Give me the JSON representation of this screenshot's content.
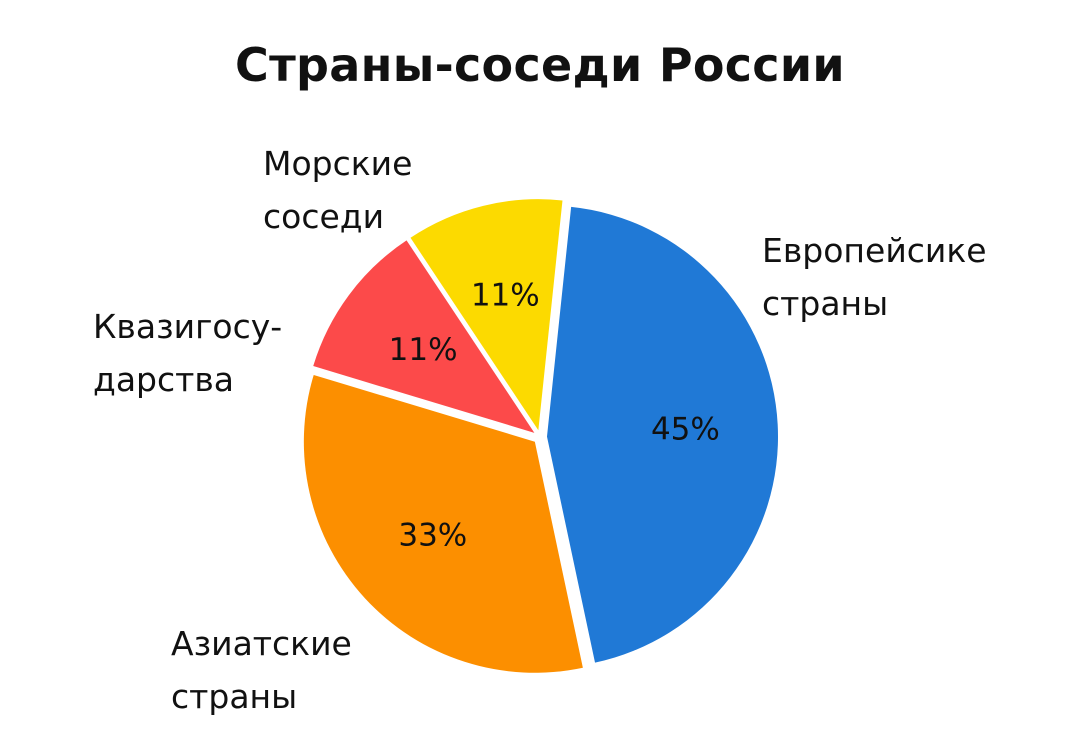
{
  "chart_data": {
    "type": "pie",
    "title": "Страны-соседи России",
    "slices": [
      {
        "name": "Европейсике страны",
        "label_lines": [
          "Европейсике",
          "страны"
        ],
        "value": 45,
        "value_label": "45%",
        "color": "#2079d6"
      },
      {
        "name": "Азиатские страны",
        "label_lines": [
          "Азиатские",
          "страны"
        ],
        "value": 33,
        "value_label": "33%",
        "color": "#fc8f00"
      },
      {
        "name": "Квазигосударства",
        "label_lines": [
          "Квазигосу-",
          "дарства"
        ],
        "value": 11,
        "value_label": "11%",
        "color": "#fc4a4a"
      },
      {
        "name": "Морские соседи",
        "label_lines": [
          "Морские",
          "соседи"
        ],
        "value": 11,
        "value_label": "11%",
        "color": "#fcda00"
      }
    ],
    "legend": "none"
  }
}
